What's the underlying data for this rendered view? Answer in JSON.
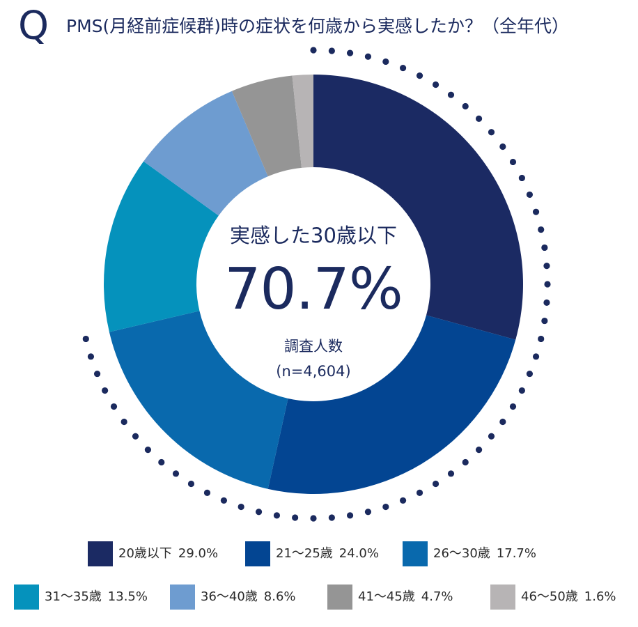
{
  "header": {
    "q_mark": "Q",
    "title": "PMS(月経前症候群)時の症状を何歳から実感したか？（全年代）"
  },
  "center": {
    "subtitle": "実感した30歳以下",
    "big_value": "70.7%",
    "sample_label": "調査人数",
    "sample_value": "(n=4,604)"
  },
  "chart_data": {
    "type": "pie",
    "categories": [
      "20歳以下",
      "21〜25歳",
      "26〜30歳",
      "31〜35歳",
      "36〜40歳",
      "41〜45歳",
      "46〜50歳"
    ],
    "values": [
      29.0,
      24.0,
      17.7,
      13.5,
      8.6,
      4.7,
      1.6
    ],
    "value_labels": [
      "29.0%",
      "24.0%",
      "17.7%",
      "13.5%",
      "8.6%",
      "4.7%",
      "1.6%"
    ],
    "colors": [
      "#1b2a63",
      "#034592",
      "#0969ad",
      "#0592bc",
      "#6e9cd0",
      "#959595",
      "#b7b4b5"
    ],
    "title": "PMS(月経前症候群)時の症状を何歳から実感したか？（全年代）",
    "donut": true,
    "highlight": "first three segments (30歳以下) marked with a dotted arc",
    "legend_position": "bottom"
  }
}
